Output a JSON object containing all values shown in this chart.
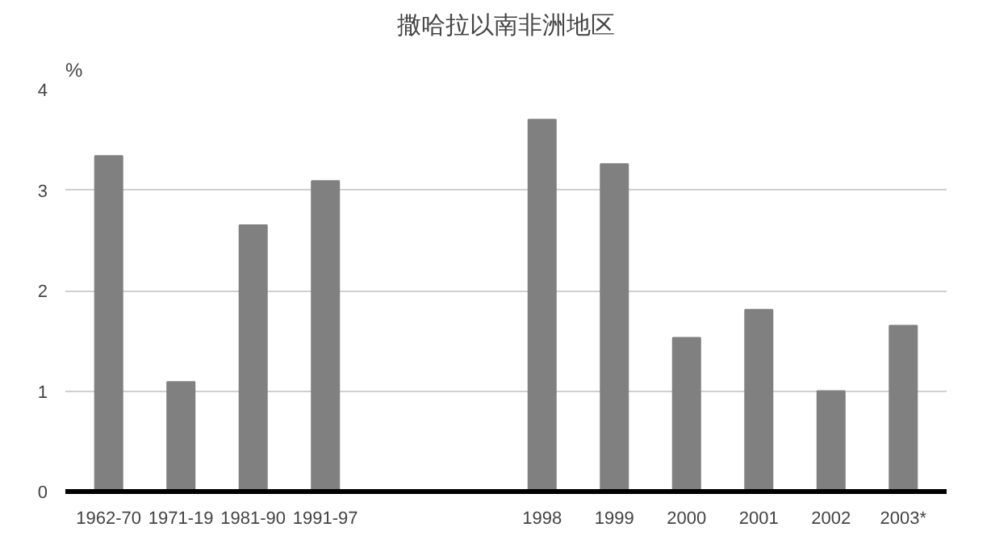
{
  "chart_data": {
    "type": "bar",
    "title": "撒哈拉以南非洲地区",
    "ylabel": "%",
    "categories": [
      "1962-70",
      "1971-19",
      "1981-90",
      "1991-97",
      null,
      null,
      "1998",
      "1999",
      "2000",
      "2001",
      "2002",
      "2003*"
    ],
    "values": [
      3.34,
      1.09,
      2.65,
      3.09,
      null,
      null,
      3.7,
      3.26,
      1.53,
      1.81,
      1.0,
      1.65
    ],
    "color": "#808080",
    "ylim": [
      0,
      4
    ],
    "yticks": [
      0,
      1,
      2,
      3,
      4
    ],
    "grid": "y"
  }
}
